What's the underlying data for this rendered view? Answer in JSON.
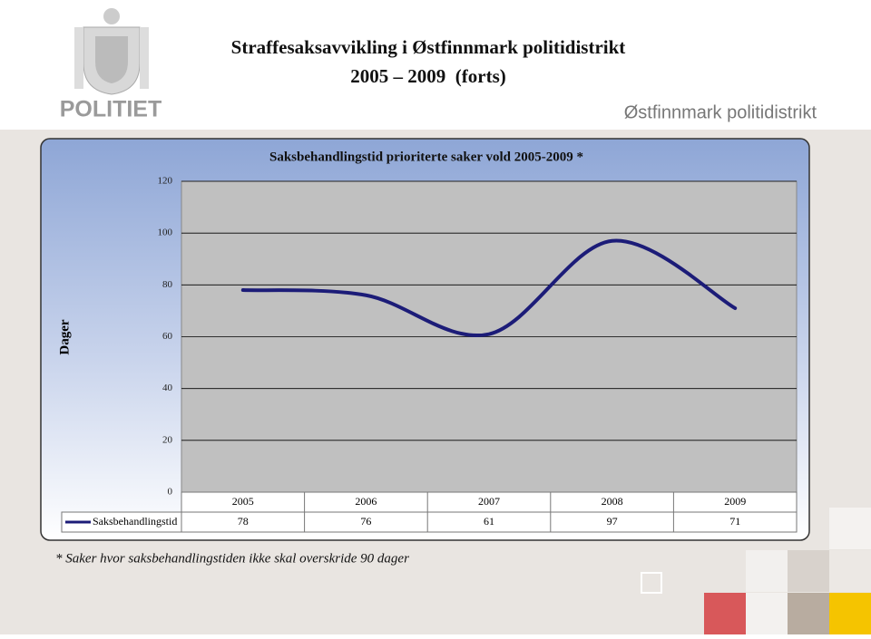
{
  "header": {
    "logo_text": "POLITIET",
    "title_line1": "Straffesaksavvikling i Østfinnmark politidistrikt",
    "title_line2": "2005 – 2009  (forts)",
    "district": "Østfinnmark politidistrikt"
  },
  "chart_data": {
    "type": "line",
    "title": "Saksbehandlingstid prioriterte saker vold 2005-2009 *",
    "y_label": "Dager",
    "categories": [
      "2005",
      "2006",
      "2007",
      "2008",
      "2009"
    ],
    "series": [
      {
        "name": "Saksbehandlingstid",
        "color": "#1c1c78",
        "values": [
          78,
          76,
          61,
          97,
          71
        ]
      }
    ],
    "ylim": [
      0,
      120
    ],
    "yticks": [
      0,
      20,
      40,
      60,
      80,
      100,
      120
    ],
    "grid": true,
    "smooth": true
  },
  "footnote": "* Saker hvor saksbehandlingstiden ikke skal overskride 90 dager"
}
